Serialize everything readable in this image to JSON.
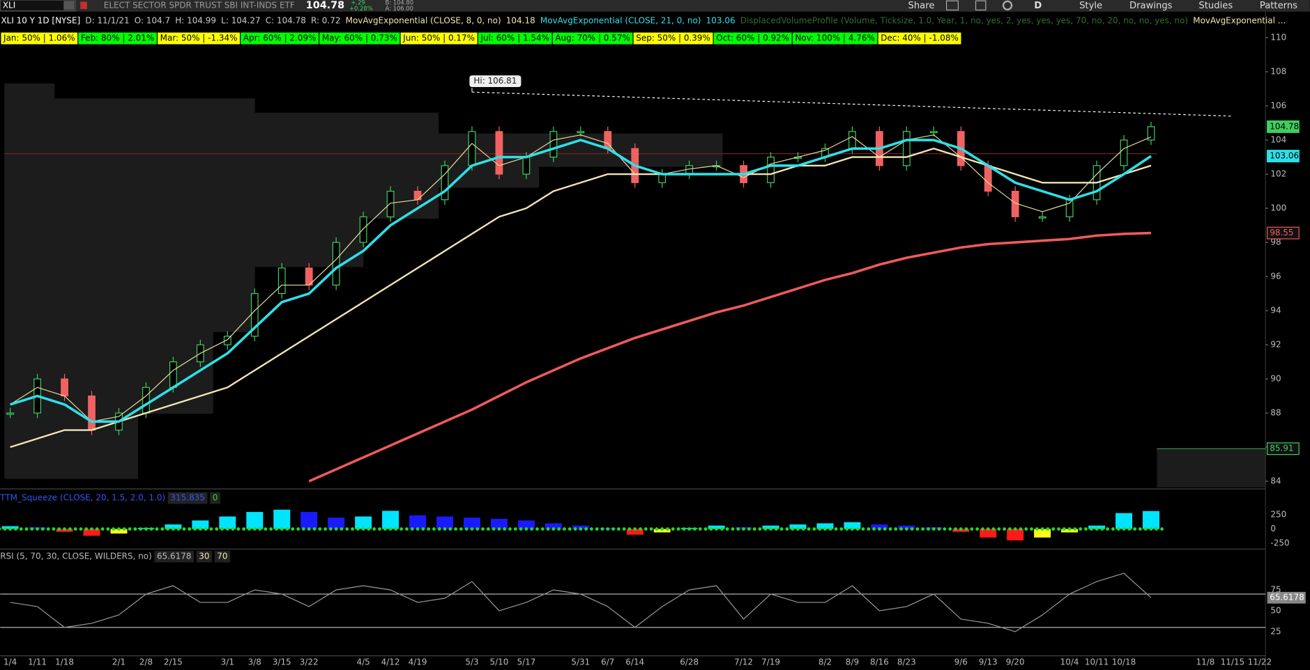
{
  "toolbar": {
    "symbol": "XLI",
    "description": "ELECT SECTOR SPDR TRUST SBI INT-INDS ETF",
    "last": 104.78,
    "change": "+.29",
    "change_pct": "+0.28%",
    "bid": "B: 104.80",
    "ask": "A: 106.00",
    "buttons": [
      "Share",
      "D",
      "Style",
      "Drawings",
      "Studies",
      "Patterns"
    ]
  },
  "header": [
    {
      "text": "XLI 10 Y 1D [NYSE]",
      "color": "#ffffff"
    },
    {
      "text": "D: 11/1/21",
      "color": "#cccccc"
    },
    {
      "text": "O: 104.7",
      "color": "#cccccc"
    },
    {
      "text": "H: 104.99",
      "color": "#cccccc"
    },
    {
      "text": "L: 104.27",
      "color": "#cccccc"
    },
    {
      "text": "C: 104.78",
      "color": "#cccccc"
    },
    {
      "text": "R: 0.72",
      "color": "#cccccc"
    },
    {
      "text": "MovAvgExponential (CLOSE, 8, 0, no)",
      "color": "#efe6b0"
    },
    {
      "text": "104.18",
      "color": "#efe6b0"
    },
    {
      "text": "MovAvgExponential (CLOSE, 21, 0, no)",
      "color": "#2de0e8"
    },
    {
      "text": "103.06",
      "color": "#2de0e8"
    },
    {
      "text": "DisplacedVolumeProfile (Volume, Ticksize, 1.0, Year, 1, no, yes, 2, yes, yes, yes, 70, no, 20, no, no, yes, no)",
      "color": "#2f6f2f"
    },
    {
      "text": "MovAvgExponential ...",
      "color": "#efe6b0"
    }
  ],
  "seasonality": [
    {
      "text": "Jan: 50% | 1.06%",
      "color": "#ffff00"
    },
    {
      "text": "Feb: 80% | 2.01%",
      "color": "#00ff00"
    },
    {
      "text": "Mar: 50% | -1.34%",
      "color": "#ffff00"
    },
    {
      "text": "Apr: 60% | 2.09%",
      "color": "#00ff00"
    },
    {
      "text": "May: 60% | 0.73%",
      "color": "#00ff00"
    },
    {
      "text": "Jun: 50% | 0.17%",
      "color": "#ffff00"
    },
    {
      "text": "Jul: 60% | 1.54%",
      "color": "#00ff00"
    },
    {
      "text": "Aug: 70% | 0.57%",
      "color": "#00ff00"
    },
    {
      "text": "Sep: 50% | 0.39%",
      "color": "#ffff00"
    },
    {
      "text": "Oct: 60% | 0.92%",
      "color": "#00ff00"
    },
    {
      "text": "Nov: 100% | 4.76%",
      "color": "#00ff00"
    },
    {
      "text": "Dec: 40% | -1.08%",
      "color": "#ffff00"
    }
  ],
  "chart_data": [
    {
      "type": "line",
      "categories": [
        "1/4",
        "1/11",
        "1/18",
        null,
        "2/1",
        "2/8",
        "2/15",
        null,
        "3/1",
        "3/8",
        "3/15",
        "3/22",
        null,
        "4/5",
        "4/12",
        "4/19",
        null,
        "5/3",
        "5/10",
        "5/17",
        null,
        "5/31",
        "6/7",
        "6/14",
        null,
        "6/28",
        null,
        "7/12",
        "7/19",
        null,
        "8/2",
        "8/9",
        "8/16",
        "8/23",
        null,
        "9/6",
        "9/13",
        "9/20",
        null,
        "10/4",
        "10/11",
        "10/18",
        null,
        null,
        "11/8",
        "11/15",
        "11/22"
      ],
      "series": [
        {
          "color": "#3fcf5f",
          "down_color": "#f06262",
          "values": [
            88,
            90,
            89,
            87,
            88,
            89.5,
            91,
            92,
            92.5,
            95,
            96.5,
            95.5,
            98,
            99.5,
            101,
            100.5,
            102.5,
            104.5,
            102,
            103,
            104.5,
            104.5,
            103.5,
            101.5,
            102,
            102.5,
            102.5,
            101.5,
            103,
            103,
            103.5,
            104.5,
            102.5,
            104.5,
            104.5,
            102.5,
            101,
            99.5,
            99.5,
            100.5,
            102.5,
            104,
            104.78,
            null,
            null,
            null,
            null
          ]
        },
        {
          "color": "#e8dc9a",
          "width": 1,
          "values": [
            88.5,
            89.5,
            89,
            87.5,
            87.8,
            89,
            90.5,
            91.5,
            92.3,
            94,
            95.5,
            95.5,
            97,
            98.8,
            100.3,
            100.5,
            102,
            103.8,
            102.5,
            103,
            104,
            104.3,
            103.8,
            102,
            102,
            102.3,
            102.5,
            101.8,
            102.6,
            103,
            103.4,
            104.2,
            103,
            104,
            104.3,
            103,
            101.5,
            100.3,
            99.8,
            100.3,
            102,
            103.5,
            104.18,
            null,
            null,
            null,
            null
          ]
        },
        {
          "color": "#f2e4b4",
          "width": 2,
          "values": [
            86,
            86.5,
            87,
            87,
            87.5,
            88,
            88.5,
            89,
            89.5,
            90.5,
            91.5,
            92.5,
            93.5,
            94.5,
            95.5,
            96.5,
            97.5,
            98.5,
            99.5,
            100,
            101,
            101.5,
            102,
            102,
            102,
            102,
            102,
            102,
            102,
            102.5,
            102.5,
            103,
            103,
            103,
            103.5,
            103,
            102.5,
            102,
            101.5,
            101.5,
            101.5,
            102,
            102.5,
            null,
            null,
            null,
            null
          ]
        },
        {
          "color": "#2de0e8",
          "width": 3,
          "values": [
            88.5,
            89,
            88.5,
            87.5,
            87.5,
            88.5,
            89.5,
            90.5,
            91.5,
            93,
            94.5,
            95,
            96.5,
            97.5,
            99,
            100,
            101,
            102.5,
            103,
            103,
            103.5,
            104,
            103.5,
            102.5,
            102,
            102,
            102,
            102,
            102.5,
            102.5,
            103,
            103.5,
            103.5,
            104,
            104,
            103.5,
            102.5,
            101.5,
            101,
            100.5,
            101,
            102,
            103.06,
            null,
            null,
            null,
            null
          ]
        },
        {
          "color": "#f05a5a",
          "width": 3,
          "values": [
            null,
            null,
            null,
            null,
            null,
            null,
            null,
            null,
            null,
            null,
            null,
            84,
            84.7,
            85.4,
            86.1,
            86.8,
            87.5,
            88.2,
            89,
            89.8,
            90.5,
            91.2,
            91.8,
            92.4,
            92.9,
            93.4,
            93.9,
            94.3,
            94.8,
            95.3,
            95.8,
            96.2,
            96.7,
            97.1,
            97.4,
            97.7,
            97.9,
            98,
            98.1,
            98.2,
            98.4,
            98.5,
            98.55,
            null,
            null,
            null,
            null
          ]
        }
      ],
      "ylim": [
        83.6,
        110.25
      ],
      "yticks": [
        84,
        86,
        88,
        90,
        92,
        94,
        96,
        98,
        100,
        102,
        104,
        106,
        108,
        110
      ],
      "high": {
        "x": "5/3",
        "value": 106.81,
        "label": "Hi: 106.81"
      },
      "trendline": {
        "x": [
          "5/3",
          "11/15"
        ],
        "values": [
          106.81,
          105.4
        ]
      },
      "level": 103.2,
      "price_labels": [
        {
          "value": 104.78,
          "color": "#3fcf5f",
          "filled": true
        },
        {
          "value": 103.06,
          "color": "#2de0e8",
          "filled": true
        },
        {
          "value": 98.55,
          "color": "#f05a5a",
          "filled": false
        },
        {
          "value": 85.91,
          "color": "#3fcf5f",
          "filled": false
        }
      ]
    },
    {
      "type": "bar",
      "title": "TTM_Squeeze (CLOSE, 20, 1.5, 2.0, 1.0)",
      "value": 315.835,
      "signal": 0,
      "values": [
        50,
        30,
        -50,
        -120,
        -80,
        20,
        80,
        150,
        220,
        300,
        340,
        300,
        200,
        220,
        320,
        240,
        220,
        200,
        180,
        150,
        100,
        60,
        20,
        -100,
        -60,
        20,
        60,
        30,
        60,
        80,
        100,
        120,
        80,
        60,
        30,
        -50,
        -150,
        -200,
        -150,
        -60,
        60,
        280,
        315.835,
        null,
        null,
        null,
        null
      ],
      "ylim": [
        -338,
        676
      ],
      "yticks": [
        250,
        0,
        -250
      ]
    },
    {
      "type": "line",
      "title": "RSI (5, 70, 30, CLOSE, WILDERS, no)",
      "value": 65.6178,
      "oversold": 30,
      "overbought": 70,
      "color": "#9a9a9a",
      "values": [
        60,
        55,
        30,
        35,
        45,
        70,
        80,
        60,
        60,
        75,
        70,
        55,
        75,
        80,
        75,
        60,
        65,
        85,
        50,
        60,
        75,
        70,
        55,
        30,
        55,
        75,
        80,
        40,
        70,
        60,
        60,
        80,
        50,
        55,
        70,
        40,
        35,
        25,
        45,
        70,
        85,
        95,
        65.6178,
        null,
        null,
        null,
        null
      ],
      "ylim": [
        -3,
        122
      ],
      "yticks": [
        75,
        50,
        25
      ]
    }
  ]
}
